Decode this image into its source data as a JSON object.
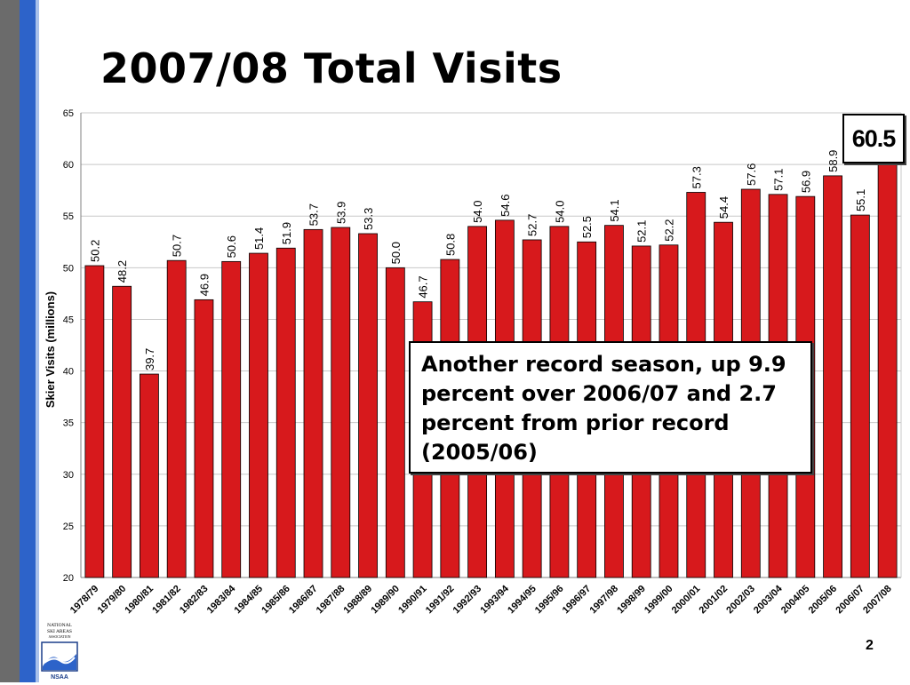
{
  "slide": {
    "title": "2007/08 Total Visits",
    "page_number": "2",
    "callout": "Another record season, up 9.9 percent over 2006/07 and 2.7 percent from prior record (2005/06)",
    "highlight_value": "60.5",
    "logo": {
      "lines": [
        "NATIONAL",
        "SKI AREAS",
        "ASSOCIATION",
        "NSAA"
      ]
    }
  },
  "colors": {
    "bar": "#d7191c",
    "bar_outline": "#000000",
    "gridline": "#c8c8c8",
    "axis": "#808080",
    "stripe_blue": "#2d63c9",
    "stripe_grey": "#6b6b6b"
  },
  "chart_data": {
    "type": "bar",
    "title": "",
    "xlabel": "",
    "ylabel": "Skier Visits (millions)",
    "ylim": [
      20,
      65
    ],
    "yticks": [
      20,
      25,
      30,
      35,
      40,
      45,
      50,
      55,
      60,
      65
    ],
    "grid": true,
    "legend": "none",
    "categories": [
      "1978/79",
      "1979/80",
      "1980/81",
      "1981/82",
      "1982/83",
      "1983/84",
      "1984/85",
      "1985/86",
      "1986/87",
      "1987/88",
      "1988/89",
      "1989/90",
      "1990/91",
      "1991/92",
      "1992/93",
      "1993/94",
      "1994/95",
      "1995/96",
      "1996/97",
      "1997/98",
      "1998/99",
      "1999/00",
      "2000/01",
      "2001/02",
      "2002/03",
      "2003/04",
      "2004/05",
      "2005/06",
      "2006/07",
      "2007/08"
    ],
    "values": [
      50.2,
      48.2,
      39.7,
      50.7,
      46.9,
      50.6,
      51.4,
      51.9,
      53.7,
      53.9,
      53.3,
      50.0,
      46.7,
      50.8,
      54.0,
      54.6,
      52.7,
      54.0,
      52.5,
      54.1,
      52.1,
      52.2,
      57.3,
      54.4,
      57.6,
      57.1,
      56.9,
      58.9,
      55.1,
      60.5
    ],
    "data_labels": [
      "50.2",
      "48.2",
      "39.7",
      "50.7",
      "46.9",
      "50.6",
      "51.4",
      "51.9",
      "53.7",
      "53.9",
      "53.3",
      "50.0",
      "46.7",
      "50.8",
      "54.0",
      "54.6",
      "52.7",
      "54.0",
      "52.5",
      "54.1",
      "52.1",
      "52.2",
      "57.3",
      "54.4",
      "57.6",
      "57.1",
      "56.9",
      "58.9",
      "55.1",
      ""
    ]
  }
}
